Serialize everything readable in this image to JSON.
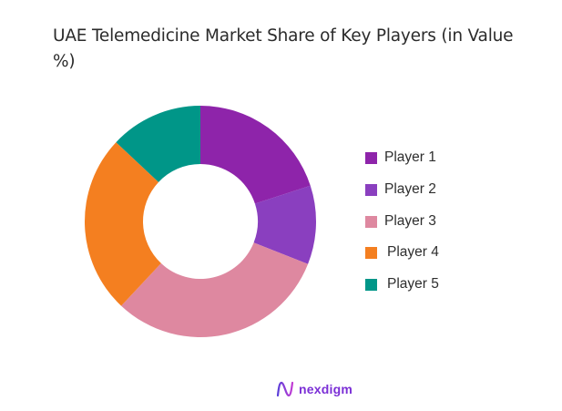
{
  "title": "UAE Telemedicine Market Share of Key Players (in Value %)",
  "chart_data": {
    "type": "pie",
    "subtype": "donut",
    "title": "UAE Telemedicine Market Share of Key Players (in Value %)",
    "categories": [
      "Player 1",
      "Player 2",
      "Player 3",
      "Player 4",
      "Player 5"
    ],
    "values": [
      20,
      11,
      31,
      25,
      13
    ],
    "unit": "%",
    "colors": [
      "#8e24aa",
      "#8a3fbf",
      "#de88a0",
      "#f47f20",
      "#009688"
    ],
    "start_angle": "12 o'clock",
    "direction": "clockwise",
    "legend_position": "right",
    "hole_ratio": 0.5
  },
  "legend": {
    "items": [
      {
        "label": "Player 1",
        "color": "#8e24aa"
      },
      {
        "label": "Player 2",
        "color": "#8a3fbf"
      },
      {
        "label": "Player 3",
        "color": "#de88a0"
      },
      {
        "label": "Player 4",
        "color": "#f47f20"
      },
      {
        "label": "Player 5",
        "color": "#009688"
      }
    ]
  },
  "branding": {
    "logo_text": "nexdigm",
    "logo_color": "#7b2fd6"
  }
}
